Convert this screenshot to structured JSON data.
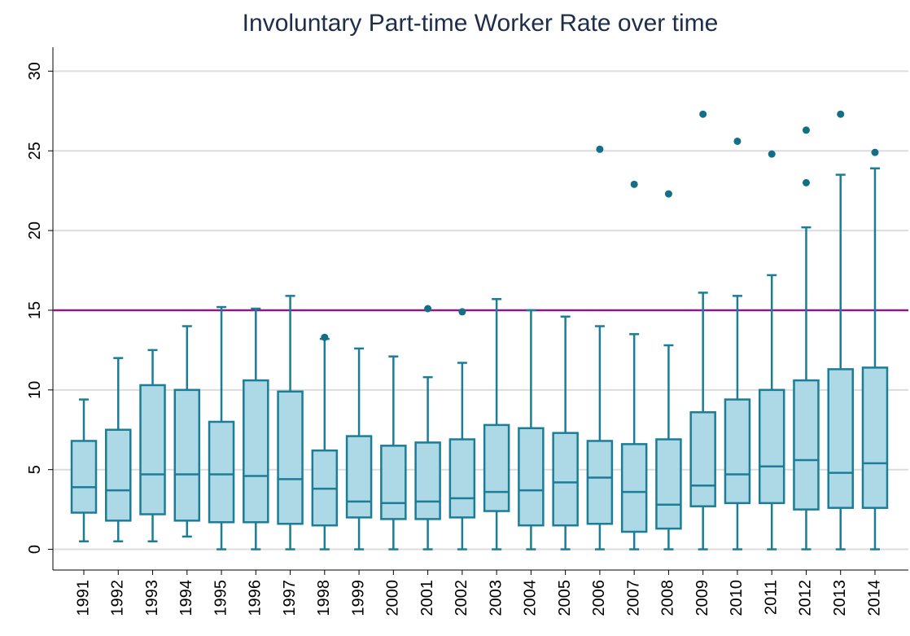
{
  "chart_data": {
    "type": "box",
    "title": "Involuntary Part-time Worker Rate over time",
    "categories": [
      "1991",
      "1992",
      "1993",
      "1994",
      "1995",
      "1996",
      "1997",
      "1998",
      "1999",
      "2000",
      "2001",
      "2002",
      "2003",
      "2004",
      "2005",
      "2006",
      "2007",
      "2008",
      "2009",
      "2010",
      "2011",
      "2012",
      "2013",
      "2014"
    ],
    "boxes": [
      {
        "min": 0.5,
        "q1": 2.3,
        "median": 3.9,
        "q3": 6.8,
        "max": 9.4,
        "outliers": []
      },
      {
        "min": 0.5,
        "q1": 1.8,
        "median": 3.7,
        "q3": 7.5,
        "max": 12.0,
        "outliers": []
      },
      {
        "min": 0.5,
        "q1": 2.2,
        "median": 4.7,
        "q3": 10.3,
        "max": 12.5,
        "outliers": []
      },
      {
        "min": 0.8,
        "q1": 1.8,
        "median": 4.7,
        "q3": 10.0,
        "max": 14.0,
        "outliers": []
      },
      {
        "min": 0,
        "q1": 1.7,
        "median": 4.7,
        "q3": 8.0,
        "max": 15.2,
        "outliers": []
      },
      {
        "min": 0,
        "q1": 1.7,
        "median": 4.6,
        "q3": 10.6,
        "max": 15.1,
        "outliers": []
      },
      {
        "min": 0,
        "q1": 1.6,
        "median": 4.4,
        "q3": 9.9,
        "max": 15.9,
        "outliers": []
      },
      {
        "min": 0,
        "q1": 1.5,
        "median": 3.8,
        "q3": 6.2,
        "max": 13.2,
        "outliers": [
          13.3
        ]
      },
      {
        "min": 0,
        "q1": 2.0,
        "median": 3.0,
        "q3": 7.1,
        "max": 12.6,
        "outliers": []
      },
      {
        "min": 0,
        "q1": 1.9,
        "median": 2.9,
        "q3": 6.5,
        "max": 12.1,
        "outliers": []
      },
      {
        "min": 0,
        "q1": 1.9,
        "median": 3.0,
        "q3": 6.7,
        "max": 10.8,
        "outliers": [
          15.1
        ]
      },
      {
        "min": 0,
        "q1": 2.0,
        "median": 3.2,
        "q3": 6.9,
        "max": 11.7,
        "outliers": [
          14.9
        ]
      },
      {
        "min": 0,
        "q1": 2.4,
        "median": 3.6,
        "q3": 7.8,
        "max": 15.7,
        "outliers": []
      },
      {
        "min": 0,
        "q1": 1.5,
        "median": 3.7,
        "q3": 7.6,
        "max": 15.0,
        "outliers": []
      },
      {
        "min": 0,
        "q1": 1.5,
        "median": 4.2,
        "q3": 7.3,
        "max": 14.6,
        "outliers": []
      },
      {
        "min": 0,
        "q1": 1.6,
        "median": 4.5,
        "q3": 6.8,
        "max": 14.0,
        "outliers": [
          25.1
        ]
      },
      {
        "min": 0,
        "q1": 1.1,
        "median": 3.6,
        "q3": 6.6,
        "max": 13.5,
        "outliers": [
          22.9
        ]
      },
      {
        "min": 0,
        "q1": 1.3,
        "median": 2.8,
        "q3": 6.9,
        "max": 12.8,
        "outliers": [
          22.3
        ]
      },
      {
        "min": 0,
        "q1": 2.7,
        "median": 4.0,
        "q3": 8.6,
        "max": 16.1,
        "outliers": [
          27.3
        ]
      },
      {
        "min": 0,
        "q1": 2.9,
        "median": 4.7,
        "q3": 9.4,
        "max": 15.9,
        "outliers": [
          25.6
        ]
      },
      {
        "min": 0,
        "q1": 2.9,
        "median": 5.2,
        "q3": 10.0,
        "max": 17.2,
        "outliers": [
          24.8
        ]
      },
      {
        "min": 0,
        "q1": 2.5,
        "median": 5.6,
        "q3": 10.6,
        "max": 20.2,
        "outliers": [
          23.0,
          26.3
        ]
      },
      {
        "min": 0,
        "q1": 2.6,
        "median": 4.8,
        "q3": 11.3,
        "max": 23.5,
        "outliers": [
          27.3
        ]
      },
      {
        "min": 0,
        "q1": 2.6,
        "median": 5.4,
        "q3": 11.4,
        "max": 23.9,
        "outliers": [
          24.9
        ]
      }
    ],
    "box_color": "#add8e6",
    "line_color": "#1b7d96",
    "outlier_color": "#136e86",
    "reference_line": {
      "value": 15,
      "color": "#8b1a89"
    },
    "ylim": [
      -1.3,
      31.5
    ],
    "yticks": [
      0,
      5,
      10,
      15,
      20,
      25,
      30
    ],
    "grid": true
  }
}
